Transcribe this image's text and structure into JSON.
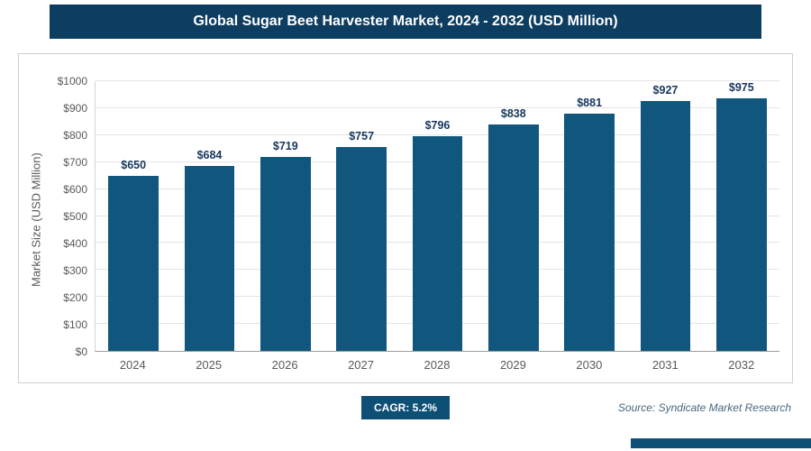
{
  "header": {
    "title": "Global Sugar Beet Harvester Market, 2024 - 2032 (USD Million)"
  },
  "chart_data": {
    "type": "bar",
    "title": "Global Sugar Beet Harvester Market, 2024 - 2032 (USD Million)",
    "categories": [
      "2024",
      "2025",
      "2026",
      "2027",
      "2028",
      "2029",
      "2030",
      "2031",
      "2032"
    ],
    "values": [
      650,
      684,
      719,
      757,
      796,
      838,
      881,
      927,
      975
    ],
    "value_labels": [
      "$650",
      "$684",
      "$719",
      "$757",
      "$796",
      "$838",
      "$881",
      "$927",
      "$975"
    ],
    "xlabel": "",
    "ylabel": "Market Size (USD Million)",
    "ylim": [
      0,
      1000
    ],
    "ytick_step": 100,
    "ytick_labels": [
      "$0",
      "$100",
      "$200",
      "$300",
      "$400",
      "$500",
      "$600",
      "$700",
      "$800",
      "$900",
      "$1000"
    ],
    "grid": true,
    "legend": "none",
    "bar_color": "#11567d"
  },
  "footer": {
    "cagr_label": "CAGR: 5.2%",
    "source": "Source: Syndicate Market Research"
  },
  "colors": {
    "title_bar_bg": "#0d3d61",
    "bar_fill": "#11567d",
    "value_label": "#17375e",
    "accent": "#0d4f75"
  }
}
